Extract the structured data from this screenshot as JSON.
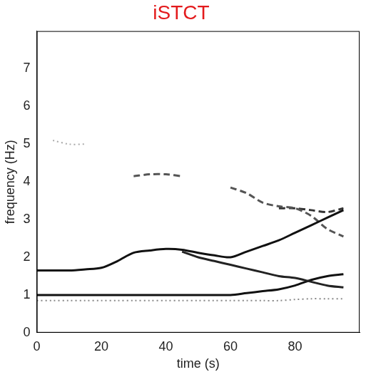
{
  "chart_data": {
    "type": "line",
    "title": "iSTCT",
    "x_label": "time (s)",
    "y_label": "frequency (Hz)",
    "x": [
      0,
      5,
      10,
      15,
      20,
      25,
      30,
      35,
      40,
      45,
      50,
      55,
      60,
      65,
      70,
      75,
      80,
      85,
      90,
      95,
      100
    ],
    "xlim": [
      0,
      100
    ],
    "xticks": [
      0,
      20,
      40,
      60,
      80
    ],
    "ylim": [
      0,
      8
    ],
    "yticks": [
      0,
      1,
      2,
      3,
      4,
      5,
      6,
      7
    ],
    "grid": false,
    "series": [
      {
        "color": "#111111",
        "line_style": "solid",
        "values": [
          1.65,
          1.65,
          1.65,
          1.68,
          1.72,
          1.9,
          2.12,
          2.18,
          2.22,
          2.2,
          2.12,
          2.05,
          2.0,
          2.15,
          2.3,
          2.45,
          2.65,
          2.85,
          3.05,
          3.25,
          null
        ]
      },
      {
        "color": "#222222",
        "line_style": "solid",
        "values": [
          null,
          null,
          null,
          null,
          null,
          null,
          null,
          null,
          null,
          2.15,
          2.0,
          1.9,
          1.8,
          1.7,
          1.6,
          1.5,
          1.45,
          1.35,
          1.25,
          1.2,
          null
        ]
      },
      {
        "color": "#111111",
        "line_style": "solid",
        "values": [
          1.0,
          1.0,
          1.0,
          1.0,
          1.0,
          1.0,
          1.0,
          1.0,
          1.0,
          1.0,
          1.0,
          1.0,
          1.0,
          1.05,
          1.1,
          1.15,
          1.25,
          1.4,
          1.5,
          1.55,
          null
        ]
      },
      {
        "color": "#555555",
        "line_style": "dashed",
        "values": [
          null,
          null,
          null,
          null,
          null,
          null,
          4.15,
          4.2,
          4.2,
          4.15,
          null,
          null,
          3.85,
          3.7,
          3.45,
          3.35,
          3.3,
          3.1,
          2.75,
          2.55,
          null
        ]
      },
      {
        "color": "#333333",
        "line_style": "dashed",
        "values": [
          null,
          null,
          null,
          null,
          null,
          null,
          null,
          null,
          null,
          null,
          null,
          null,
          null,
          null,
          null,
          3.3,
          3.3,
          3.25,
          3.2,
          3.3,
          null
        ]
      },
      {
        "color": "#888888",
        "line_style": "dotted",
        "values": [
          0.85,
          0.85,
          0.85,
          0.85,
          0.85,
          0.85,
          0.85,
          0.85,
          0.85,
          0.85,
          0.85,
          0.85,
          0.85,
          0.85,
          0.85,
          0.85,
          0.88,
          0.9,
          0.9,
          0.9,
          null
        ]
      },
      {
        "color": "#aaaaaa",
        "line_style": "dotted",
        "values": [
          null,
          5.1,
          5.0,
          5.0,
          null,
          null,
          null,
          null,
          null,
          null,
          null,
          null,
          null,
          null,
          null,
          null,
          null,
          null,
          null,
          null,
          null
        ]
      }
    ]
  }
}
